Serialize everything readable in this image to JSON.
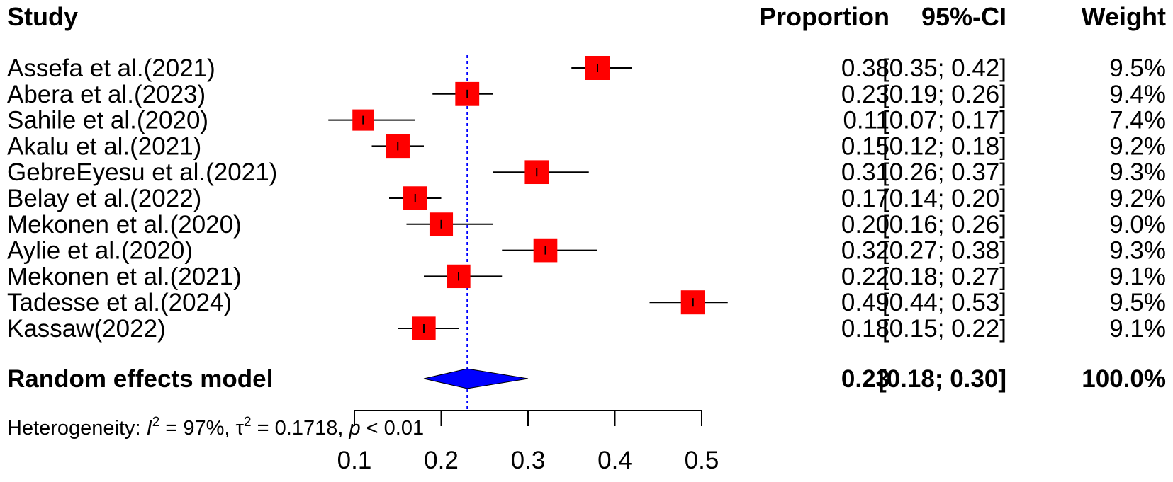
{
  "headers": {
    "study": "Study",
    "proportion": "Proportion",
    "ci": "95%-CI",
    "weight": "Weight"
  },
  "chart_data": {
    "type": "forest",
    "x_axis": {
      "ticks": [
        0.1,
        0.2,
        0.3,
        0.4,
        0.5
      ],
      "tick_labels": [
        "0.1",
        "0.2",
        "0.3",
        "0.4",
        "0.5"
      ],
      "range": [
        0.1,
        0.5
      ]
    },
    "reference_line": 0.23,
    "studies": [
      {
        "label": "Assefa et al.(2021)",
        "est": 0.38,
        "lo": 0.35,
        "hi": 0.42,
        "prop_text": "0.38",
        "ci_text": "[0.35; 0.42]",
        "weight_text": "9.5%",
        "weight": 9.5
      },
      {
        "label": "Abera et al.(2023)",
        "est": 0.23,
        "lo": 0.19,
        "hi": 0.26,
        "prop_text": "0.23",
        "ci_text": "[0.19; 0.26]",
        "weight_text": "9.4%",
        "weight": 9.4
      },
      {
        "label": "Sahile et al.(2020)",
        "est": 0.11,
        "lo": 0.07,
        "hi": 0.17,
        "prop_text": "0.11",
        "ci_text": "[0.07; 0.17]",
        "weight_text": "7.4%",
        "weight": 7.4
      },
      {
        "label": "Akalu et al.(2021)",
        "est": 0.15,
        "lo": 0.12,
        "hi": 0.18,
        "prop_text": "0.15",
        "ci_text": "[0.12; 0.18]",
        "weight_text": "9.2%",
        "weight": 9.2
      },
      {
        "label": "GebreEyesu et al.(2021)",
        "est": 0.31,
        "lo": 0.26,
        "hi": 0.37,
        "prop_text": "0.31",
        "ci_text": "[0.26; 0.37]",
        "weight_text": "9.3%",
        "weight": 9.3
      },
      {
        "label": "Belay et al.(2022)",
        "est": 0.17,
        "lo": 0.14,
        "hi": 0.2,
        "prop_text": "0.17",
        "ci_text": "[0.14; 0.20]",
        "weight_text": "9.2%",
        "weight": 9.2
      },
      {
        "label": "Mekonen et al.(2020)",
        "est": 0.2,
        "lo": 0.16,
        "hi": 0.26,
        "prop_text": "0.20",
        "ci_text": "[0.16; 0.26]",
        "weight_text": "9.0%",
        "weight": 9.0
      },
      {
        "label": "Aylie et al.(2020)",
        "est": 0.32,
        "lo": 0.27,
        "hi": 0.38,
        "prop_text": "0.32",
        "ci_text": "[0.27; 0.38]",
        "weight_text": "9.3%",
        "weight": 9.3
      },
      {
        "label": "Mekonen et al.(2021)",
        "est": 0.22,
        "lo": 0.18,
        "hi": 0.27,
        "prop_text": "0.22",
        "ci_text": "[0.18; 0.27]",
        "weight_text": "9.1%",
        "weight": 9.1
      },
      {
        "label": "Tadesse et al.(2024)",
        "est": 0.49,
        "lo": 0.44,
        "hi": 0.53,
        "prop_text": "0.49",
        "ci_text": "[0.44; 0.53]",
        "weight_text": "9.5%",
        "weight": 9.5
      },
      {
        "label": "Kassaw(2022)",
        "est": 0.18,
        "lo": 0.15,
        "hi": 0.22,
        "prop_text": "0.18",
        "ci_text": "[0.15; 0.22]",
        "weight_text": "9.1%",
        "weight": 9.1
      }
    ],
    "summary": {
      "label": "Random effects model",
      "est": 0.23,
      "lo": 0.18,
      "hi": 0.3,
      "prop_text": "0.23",
      "ci_text": "[0.18; 0.30]",
      "weight_text": "100.0%"
    },
    "heterogeneity": {
      "prefix": "Heterogeneity: ",
      "i2_symbol": "I",
      "i2_value": " = 97%, ",
      "tau2_symbol": "τ",
      "tau2_value": " = 0.1718, ",
      "p_symbol": "p",
      "p_value": " < 0.01"
    },
    "colors": {
      "square": "#ff0000",
      "diamond": "#0000ff",
      "ref_line": "#0000ff",
      "line": "#000000"
    }
  }
}
